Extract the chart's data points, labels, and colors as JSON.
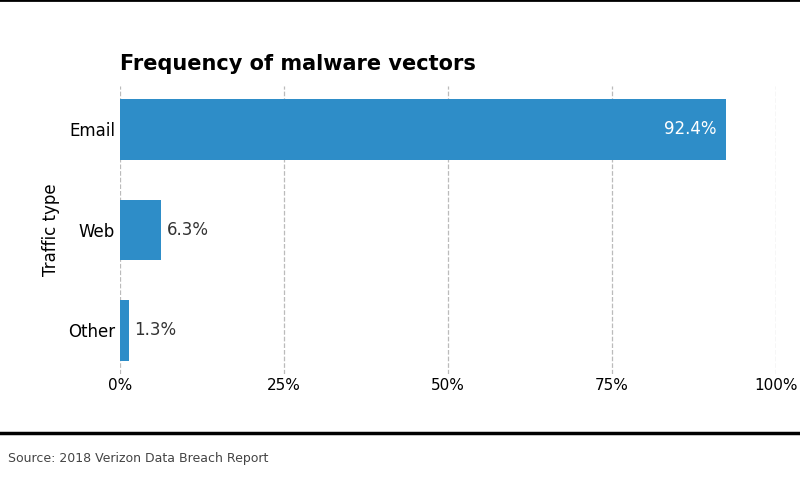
{
  "title": "Frequency of malware vectors",
  "categories": [
    "Other",
    "Web",
    "Email"
  ],
  "values": [
    1.3,
    6.3,
    92.4
  ],
  "bar_color": "#2e8dc8",
  "ylabel": "Traffic type",
  "source": "Source: 2018 Verizon Data Breach Report",
  "xlim": [
    0,
    100
  ],
  "xticks": [
    0,
    25,
    50,
    75,
    100
  ],
  "xtick_labels": [
    "0%",
    "25%",
    "50%",
    "75%",
    "100%"
  ],
  "value_labels": [
    "1.3%",
    "6.3%",
    "92.4%"
  ],
  "bar_height": 0.6,
  "background_color": "#ffffff",
  "grid_color": "#bbbbbb",
  "title_fontsize": 15,
  "ylabel_fontsize": 12,
  "tick_fontsize": 11,
  "source_fontsize": 9,
  "value_label_color_inside": "#ffffff",
  "value_label_color_outside": "#333333",
  "value_label_fontsize": 12
}
